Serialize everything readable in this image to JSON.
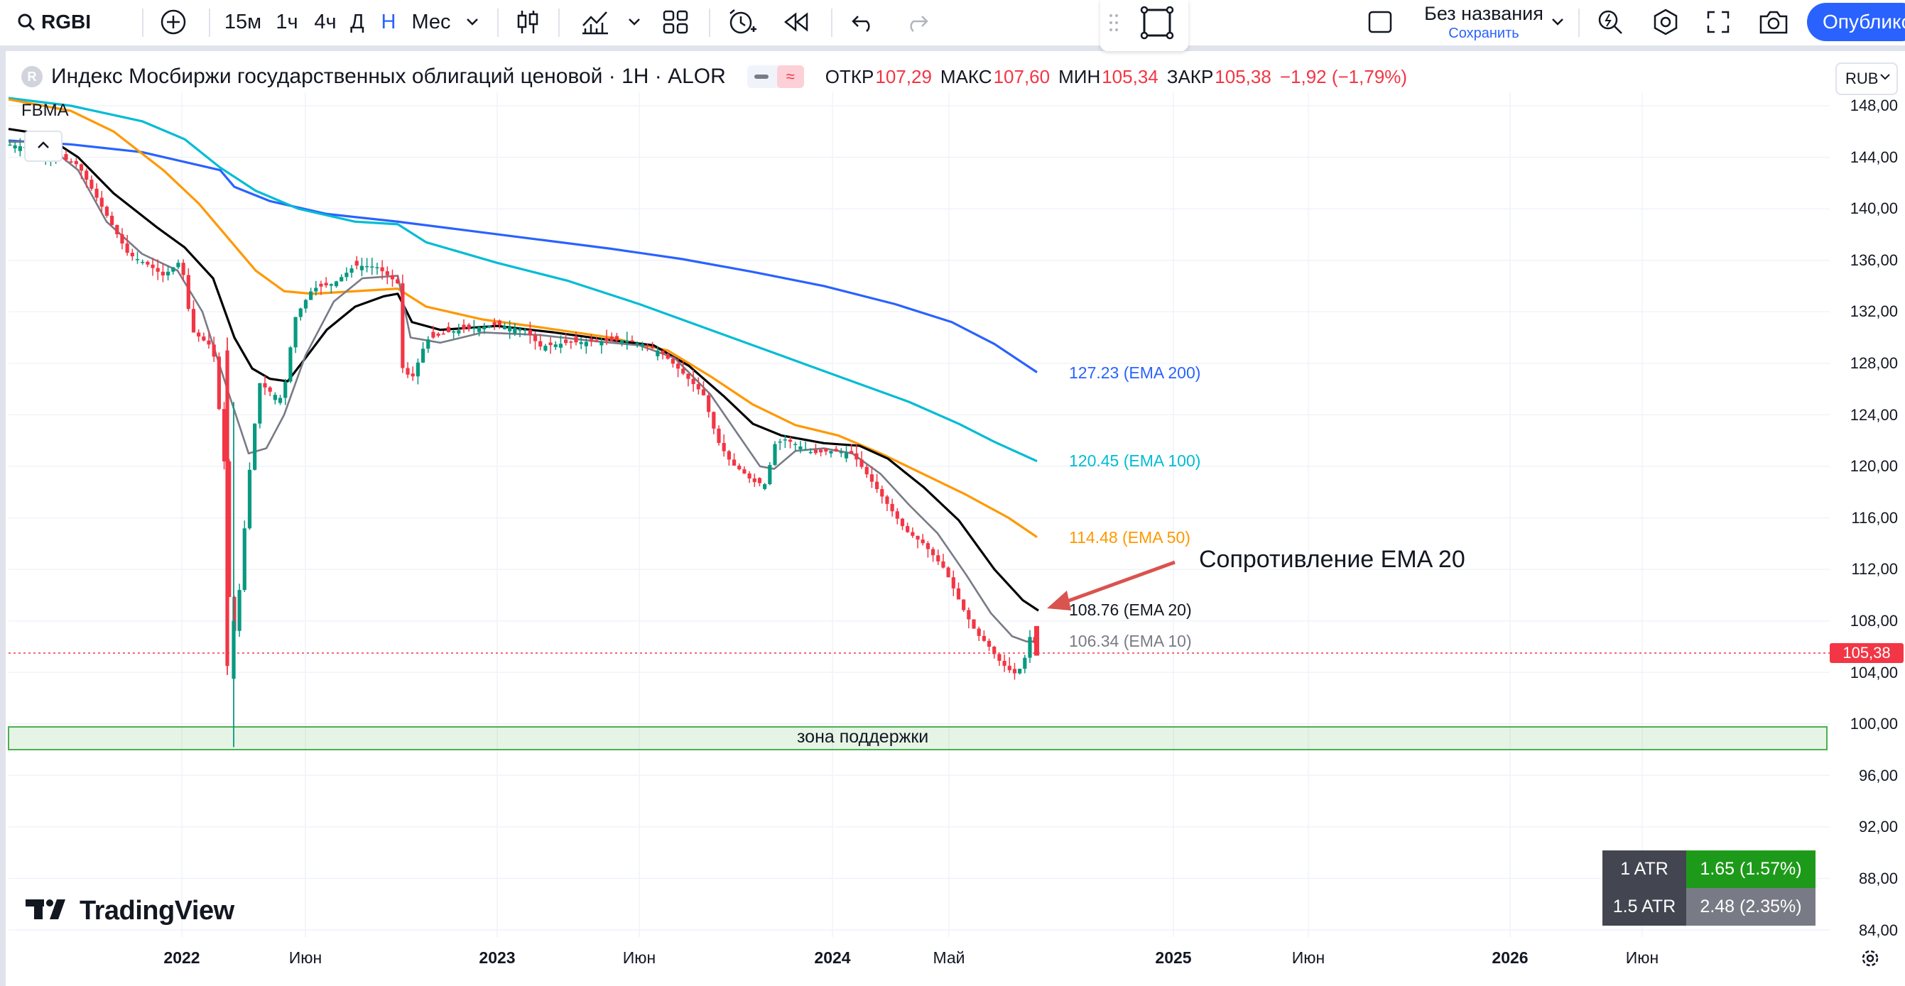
{
  "toolbar": {
    "symbol": "RGBI",
    "intervals": [
      "15м",
      "1ч",
      "4ч",
      "Д",
      "Н",
      "Мес"
    ],
    "active_interval": "Н",
    "layout_name": "Без названия",
    "layout_save": "Сохранить",
    "publish_label": "Опубликовать",
    "icons": [
      "search-icon",
      "plus-circle-icon",
      "chevron-down-icon",
      "candles-icon",
      "indicators-icon",
      "layouts-icon",
      "alert-icon",
      "replay-icon",
      "undo-icon",
      "redo-icon",
      "rectangle-tool-icon",
      "square-icon",
      "quick-search-icon",
      "settings-hex-icon",
      "fullscreen-icon",
      "camera-icon"
    ]
  },
  "legend": {
    "logo_letter": "R",
    "title": "Индекс Мосбиржи государственных облигаций ценовой · 1Н · ALOR",
    "open_label": "ОТКР",
    "open": "107,29",
    "high_label": "МАКС",
    "high": "107,60",
    "low_label": "МИН",
    "low": "105,34",
    "close_label": "ЗАКР",
    "close": "105,38",
    "change": "−1,92 (−1,79%)",
    "indicator_name": "FBMA"
  },
  "currency": "RUB",
  "price_axis": {
    "labels": [
      "148,00",
      "144,00",
      "140,00",
      "136,00",
      "132,00",
      "128,00",
      "124,00",
      "120,00",
      "116,00",
      "112,00",
      "108,00",
      "104,00",
      "100,00",
      "96,00",
      "92,00",
      "88,00",
      "84,00"
    ],
    "last_price": "105,38"
  },
  "time_axis": {
    "labels": [
      {
        "text": "2022",
        "year": true
      },
      {
        "text": "Июн",
        "year": false
      },
      {
        "text": "2023",
        "year": true
      },
      {
        "text": "Июн",
        "year": false
      },
      {
        "text": "2024",
        "year": true
      },
      {
        "text": "Май",
        "year": false
      },
      {
        "text": "2025",
        "year": true
      },
      {
        "text": "Июн",
        "year": false
      },
      {
        "text": "2026",
        "year": true
      },
      {
        "text": "Июн",
        "year": false
      }
    ]
  },
  "ema_labels": {
    "ema200": "127.23 (EMA 200)",
    "ema100": "120.45 (EMA 100)",
    "ema50": "114.48 (EMA 50)",
    "ema20": "108.76 (EMA 20)",
    "ema10": "106.34 (EMA 10)"
  },
  "colors": {
    "up": "#089981",
    "down": "#f23645",
    "ema200": "#2962ff",
    "ema100": "#00bcd4",
    "ema50": "#ff9800",
    "ema20": "#000000",
    "ema10": "#787b86",
    "support_zone": "#4caf50",
    "annotation_arrow": "#d9534f"
  },
  "annotations": {
    "resistance": "Сопротивление EMA 20",
    "support_zone": "зона поддержки"
  },
  "atr": [
    {
      "name": "1 ATR",
      "value": "1.65 (1.57%)"
    },
    {
      "name": "1.5 ATR",
      "value": "2.48 (2.35%)"
    }
  ],
  "brand": "TradingView",
  "chart_data": {
    "type": "candlestick",
    "interval": "1W",
    "ylim": [
      82,
      149
    ],
    "support_zone": [
      98,
      99.7
    ],
    "last_close": 105.38,
    "price_series": [
      {
        "date": "2021-10",
        "value": 145.0
      },
      {
        "date": "2021-11",
        "value": 143.0
      },
      {
        "date": "2021-12",
        "value": 136.0
      },
      {
        "date": "2022-01",
        "value": 135.5
      },
      {
        "date": "2022-02",
        "value": 129.0
      },
      {
        "date": "2022-02-25",
        "value": 104.0
      },
      {
        "date": "2022-03",
        "value": 110.0
      },
      {
        "date": "2022-04",
        "value": 126.0
      },
      {
        "date": "2022-05",
        "value": 128.0
      },
      {
        "date": "2022-06",
        "value": 133.0
      },
      {
        "date": "2022-08",
        "value": 135.5
      },
      {
        "date": "2022-09",
        "value": 127.0
      },
      {
        "date": "2022-10",
        "value": 130.0
      },
      {
        "date": "2022-12",
        "value": 131.0
      },
      {
        "date": "2023-03",
        "value": 129.0
      },
      {
        "date": "2023-06",
        "value": 129.8
      },
      {
        "date": "2023-08",
        "value": 127.0
      },
      {
        "date": "2023-10",
        "value": 119.5
      },
      {
        "date": "2023-11",
        "value": 121.8
      },
      {
        "date": "2024-01",
        "value": 121.0
      },
      {
        "date": "2024-03",
        "value": 115.0
      },
      {
        "date": "2024-05",
        "value": 111.0
      },
      {
        "date": "2024-06",
        "value": 106.0
      },
      {
        "date": "2024-07",
        "value": 103.5
      },
      {
        "date": "2024-08",
        "value": 105.4
      }
    ],
    "ema_values": {
      "ema200": 127.23,
      "ema100": 120.45,
      "ema50": 114.48,
      "ema20": 108.76,
      "ema10": 106.34
    }
  }
}
